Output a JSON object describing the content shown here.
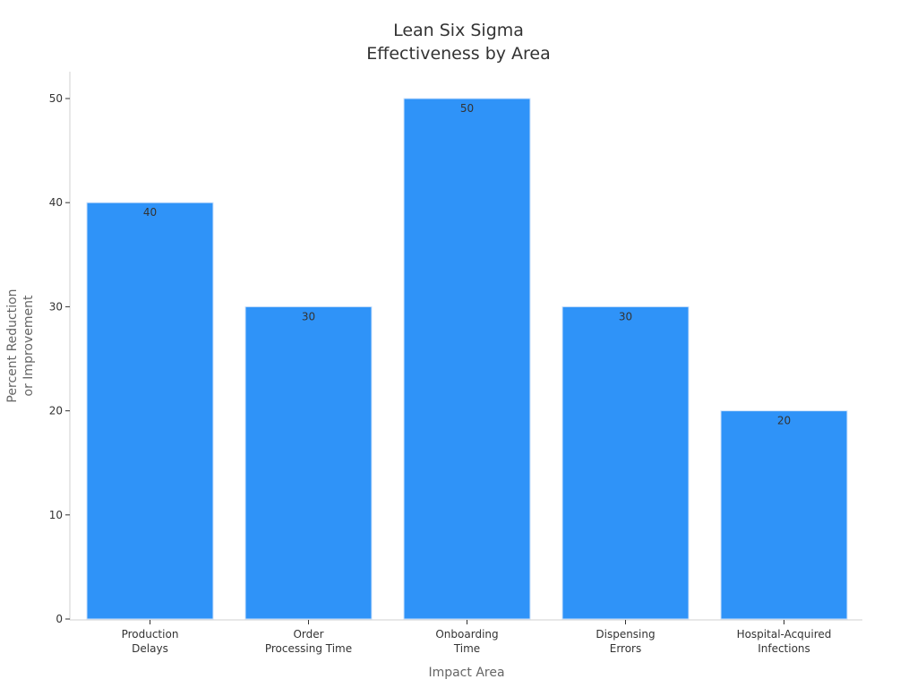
{
  "chart_data": {
    "type": "bar",
    "title": [
      "Lean Six Sigma",
      "Effectiveness by Area"
    ],
    "xlabel": "Impact Area",
    "ylabel": [
      "Percent Reduction",
      "or Improvement"
    ],
    "categories": [
      [
        "Production",
        "Delays"
      ],
      [
        "Order",
        "Processing Time"
      ],
      [
        "Onboarding",
        "Time"
      ],
      [
        "Dispensing",
        "Errors"
      ],
      [
        "Hospital-Acquired",
        "Infections"
      ]
    ],
    "values": [
      40,
      30,
      50,
      30,
      20
    ],
    "yticks": [
      0,
      10,
      20,
      30,
      40,
      50
    ],
    "ylim": [
      0,
      52.6
    ],
    "grid": false,
    "bar_color": "#2f93f8",
    "data_labels": true
  }
}
